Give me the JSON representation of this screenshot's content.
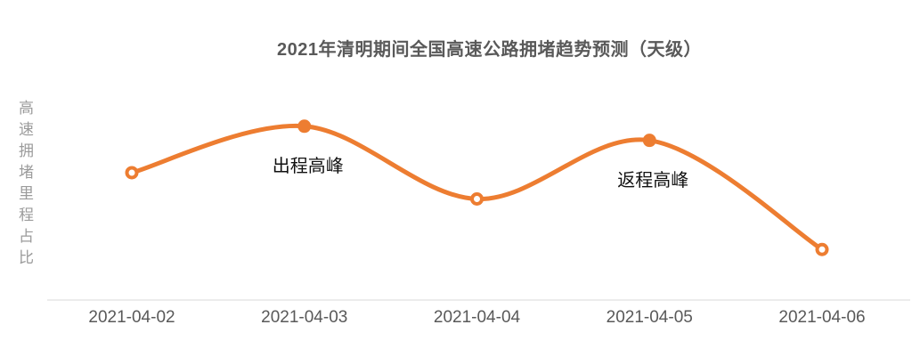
{
  "title": "2021年清明期间全国高速公路拥堵趋势预测（天级）",
  "y_axis_label": "高速拥堵里程占比",
  "colors": {
    "line": "#ED7D31",
    "marker_fill": "#ED7D31",
    "marker_open_fill": "#FFFFFF",
    "title_text": "#595959",
    "axis_label_text": "#9B9B9B",
    "tick_label_text": "#595959",
    "annotation_text": "#111111",
    "axis_line": "#D9D9D9",
    "background": "#FFFFFF"
  },
  "chart_data": {
    "type": "line",
    "title": "2021年清明期间全国高速公路拥堵趋势预测（天级）",
    "xlabel": "",
    "ylabel": "高速拥堵里程占比",
    "categories": [
      "2021-04-02",
      "2021-04-03",
      "2021-04-04",
      "2021-04-05",
      "2021-04-06"
    ],
    "series": [
      {
        "name": "高速拥堵里程占比",
        "values": [
          0.63,
          0.86,
          0.5,
          0.79,
          0.25
        ],
        "markers": [
          "open",
          "filled",
          "open",
          "filled",
          "open"
        ]
      }
    ],
    "ylim": [
      0,
      1
    ],
    "grid": false,
    "legend_position": "none",
    "y_axis_ticks_visible": false,
    "line_style": "smooth",
    "annotations": [
      {
        "text": "出程高峰",
        "point_index": 1
      },
      {
        "text": "返程高峰",
        "point_index": 3
      }
    ]
  }
}
